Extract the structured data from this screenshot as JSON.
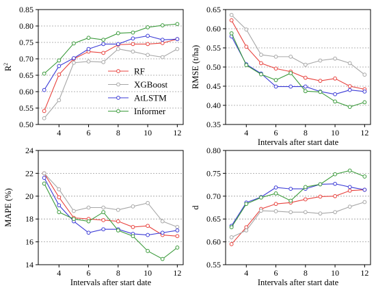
{
  "chart_data": [
    {
      "type": "line",
      "ylabel": "R",
      "ylabel_superscript": "2",
      "xlabel": "",
      "x": [
        3,
        4,
        5,
        6,
        7,
        8,
        9,
        10,
        11,
        12
      ],
      "xticks": [
        "4",
        "6",
        "8",
        "10",
        "12"
      ],
      "ylim": [
        0.5,
        0.85
      ],
      "yticks": [
        "0.50",
        "0.55",
        "0.60",
        "0.65",
        "0.70",
        "0.75",
        "0.80",
        "0.85"
      ],
      "grid": true,
      "legend": "center-right",
      "series": [
        {
          "name": "RF",
          "color": "#e8413c",
          "values": [
            0.541,
            0.652,
            0.7,
            0.722,
            0.718,
            0.743,
            0.745,
            0.745,
            0.748,
            0.76
          ]
        },
        {
          "name": "XGBoost",
          "color": "#a6a6a6",
          "values": [
            0.519,
            0.574,
            0.688,
            0.692,
            0.69,
            0.73,
            0.722,
            0.712,
            0.705,
            0.73
          ]
        },
        {
          "name": "AtLSTM",
          "color": "#3a3ad6",
          "values": [
            0.605,
            0.678,
            0.702,
            0.73,
            0.745,
            0.745,
            0.762,
            0.77,
            0.758,
            0.76
          ]
        },
        {
          "name": "Informer",
          "color": "#3a9a3a",
          "values": [
            0.655,
            0.695,
            0.747,
            0.764,
            0.758,
            0.778,
            0.78,
            0.796,
            0.802,
            0.806
          ]
        }
      ]
    },
    {
      "type": "line",
      "ylabel": "RMSE (t/ha)",
      "xlabel": "Intervals after start date",
      "x": [
        3,
        4,
        5,
        6,
        7,
        8,
        9,
        10,
        11,
        12
      ],
      "xticks": [
        "4",
        "6",
        "8",
        "10",
        "12"
      ],
      "ylim": [
        0.35,
        0.65
      ],
      "yticks": [
        "0.35",
        "0.40",
        "0.45",
        "0.50",
        "0.55",
        "0.60",
        "0.65"
      ],
      "grid": true,
      "series": [
        {
          "name": "RF",
          "color": "#e8413c",
          "values": [
            0.622,
            0.553,
            0.51,
            0.496,
            0.488,
            0.472,
            0.464,
            0.47,
            0.45,
            0.442
          ]
        },
        {
          "name": "XGBoost",
          "color": "#a6a6a6",
          "values": [
            0.636,
            0.598,
            0.532,
            0.527,
            0.527,
            0.506,
            0.517,
            0.522,
            0.51,
            0.48
          ]
        },
        {
          "name": "AtLSTM",
          "color": "#3a3ad6",
          "values": [
            0.58,
            0.507,
            0.483,
            0.449,
            0.449,
            0.449,
            0.436,
            0.429,
            0.44,
            0.436
          ]
        },
        {
          "name": "Informer",
          "color": "#3a9a3a",
          "values": [
            0.588,
            0.505,
            0.481,
            0.466,
            0.484,
            0.437,
            0.435,
            0.41,
            0.396,
            0.408
          ]
        }
      ]
    },
    {
      "type": "line",
      "ylabel": "MAPE (%)",
      "xlabel": "Intervals after start date",
      "x": [
        3,
        4,
        5,
        6,
        7,
        8,
        9,
        10,
        11,
        12
      ],
      "xticks": [
        "4",
        "6",
        "8",
        "10",
        "12"
      ],
      "ylim": [
        14,
        24
      ],
      "yticks": [
        "14",
        "16",
        "18",
        "20",
        "22",
        "24"
      ],
      "grid": true,
      "series": [
        {
          "name": "RF",
          "color": "#e8413c",
          "values": [
            22.0,
            19.9,
            18.1,
            18.0,
            17.9,
            17.8,
            17.3,
            17.4,
            16.6,
            16.5
          ]
        },
        {
          "name": "XGBoost",
          "color": "#a6a6a6",
          "values": [
            22.0,
            20.6,
            18.7,
            19.0,
            19.0,
            18.8,
            19.1,
            19.4,
            17.8,
            17.3
          ]
        },
        {
          "name": "AtLSTM",
          "color": "#3a3ad6",
          "values": [
            21.6,
            19.2,
            17.8,
            16.8,
            17.1,
            17.1,
            16.7,
            16.6,
            16.8,
            17.0
          ]
        },
        {
          "name": "Informer",
          "color": "#3a9a3a",
          "values": [
            21.1,
            18.6,
            18.0,
            17.8,
            18.6,
            17.0,
            16.5,
            15.2,
            14.5,
            15.5
          ]
        }
      ]
    },
    {
      "type": "line",
      "ylabel": "d",
      "xlabel": "Intervals after start date",
      "x": [
        3,
        4,
        5,
        6,
        7,
        8,
        9,
        10,
        11,
        12
      ],
      "xticks": [
        "4",
        "6",
        "8",
        "10",
        "12"
      ],
      "ylim": [
        0.55,
        0.8
      ],
      "yticks": [
        "0.55",
        "0.60",
        "0.65",
        "0.70",
        "0.75",
        "0.80"
      ],
      "grid": true,
      "series": [
        {
          "name": "RF",
          "color": "#e8413c",
          "values": [
            0.595,
            0.632,
            0.672,
            0.683,
            0.686,
            0.693,
            0.699,
            0.7,
            0.712,
            0.714
          ]
        },
        {
          "name": "XGBoost",
          "color": "#a6a6a6",
          "values": [
            0.61,
            0.625,
            0.668,
            0.667,
            0.665,
            0.665,
            0.662,
            0.665,
            0.677,
            0.687
          ]
        },
        {
          "name": "AtLSTM",
          "color": "#3a3ad6",
          "values": [
            0.635,
            0.686,
            0.698,
            0.719,
            0.716,
            0.716,
            0.726,
            0.727,
            0.72,
            0.714
          ]
        },
        {
          "name": "Informer",
          "color": "#3a9a3a",
          "values": [
            0.632,
            0.683,
            0.697,
            0.706,
            0.69,
            0.72,
            0.726,
            0.748,
            0.756,
            0.743
          ]
        }
      ]
    }
  ]
}
